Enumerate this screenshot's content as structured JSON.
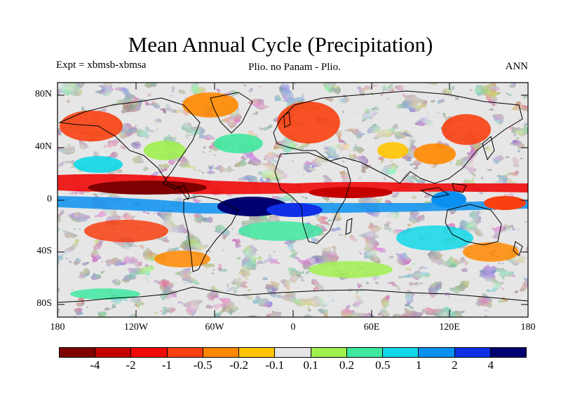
{
  "header": {
    "title": "Mean Annual Cycle (Precipitation)",
    "experiment": "Expt = xbmsb-xbmsa",
    "subtitle": "Plio. no Panam - Plio.",
    "period": "ANN"
  },
  "map": {
    "lat_labels": [
      "80N",
      "40N",
      "0",
      "40S",
      "80S"
    ],
    "lon_labels": [
      "180",
      "120W",
      "60W",
      "0",
      "60E",
      "120E",
      "180"
    ]
  },
  "legend": {
    "colors": [
      "#7f0000",
      "#c40000",
      "#f00a0a",
      "#f84010",
      "#ff8800",
      "#ffc400",
      "#e6e6e6",
      "#a0f050",
      "#40e8a0",
      "#10d8e8",
      "#0a90f0",
      "#1030e8",
      "#000070"
    ],
    "labels": [
      "-4",
      "-2",
      "-1",
      "-0.5",
      "-0.2",
      "-0.1",
      "0.1",
      "0.2",
      "0.5",
      "1",
      "2",
      "4"
    ]
  },
  "chart_data": {
    "type": "heatmap",
    "title": "Mean Annual Cycle (Precipitation)",
    "xlim": [
      -180,
      180
    ],
    "ylim": [
      -90,
      90
    ],
    "color_levels": [
      -4,
      -2,
      -1,
      -0.5,
      -0.2,
      -0.1,
      0.1,
      0.2,
      0.5,
      1,
      2,
      4
    ]
  }
}
